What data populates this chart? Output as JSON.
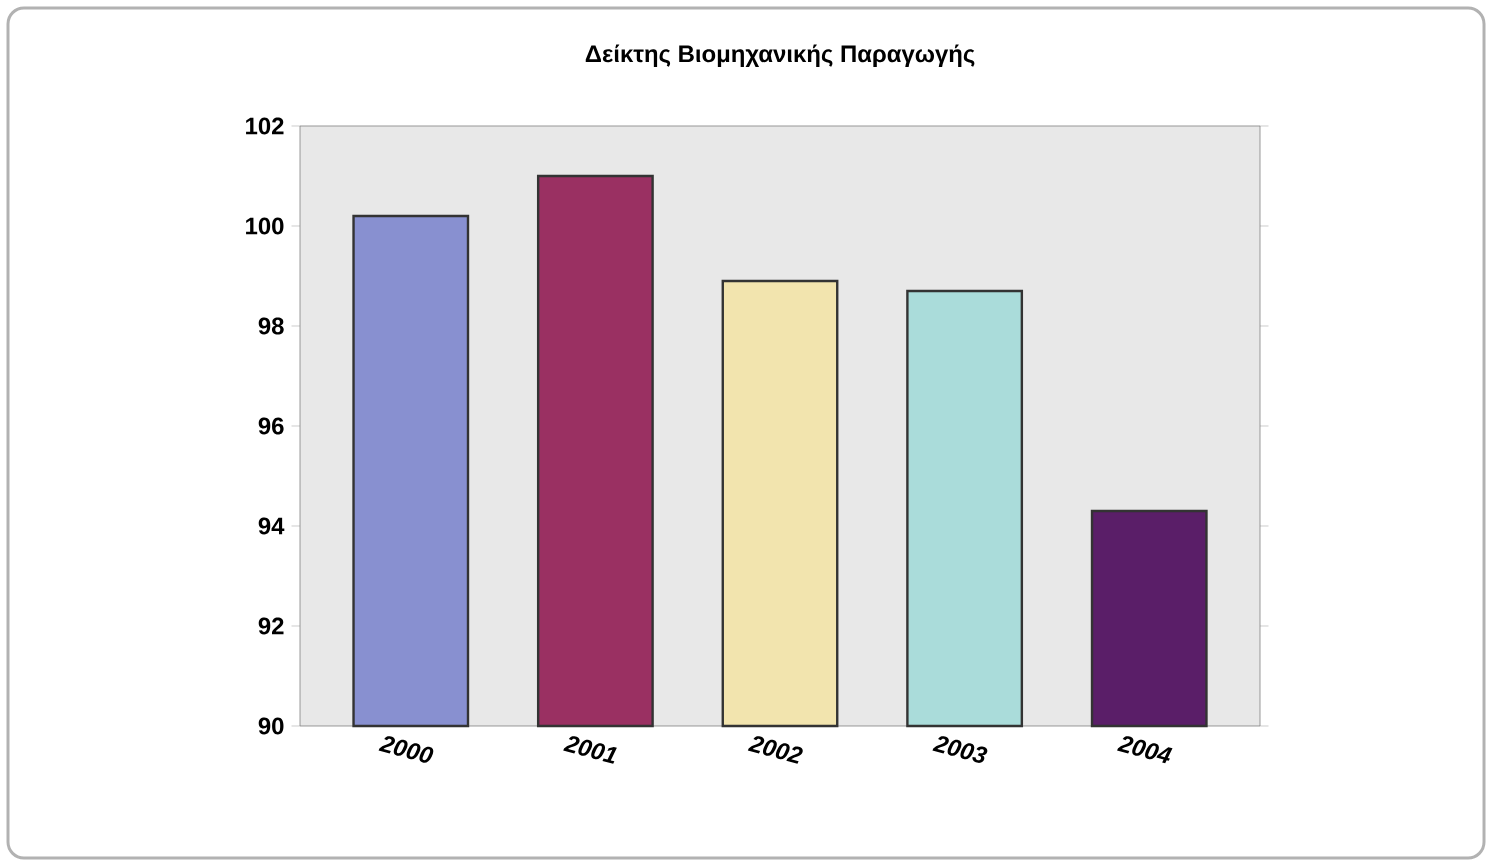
{
  "chart_data": {
    "type": "bar",
    "title": "**Δείκτης Βιομηχανικής Παραγωγής**",
    "categories": [
      "2000",
      "2001",
      "2002",
      "2003",
      "2004"
    ],
    "values": [
      100.2,
      101.0,
      98.9,
      98.7,
      94.3
    ],
    "colors": [
      "#8890d0",
      "#9a3062",
      "#f2e4ae",
      "#aadcda",
      "#5a1e68"
    ],
    "ylim": [
      90,
      102
    ],
    "yticks": [
      90,
      92,
      94,
      96,
      98,
      100,
      102
    ]
  }
}
